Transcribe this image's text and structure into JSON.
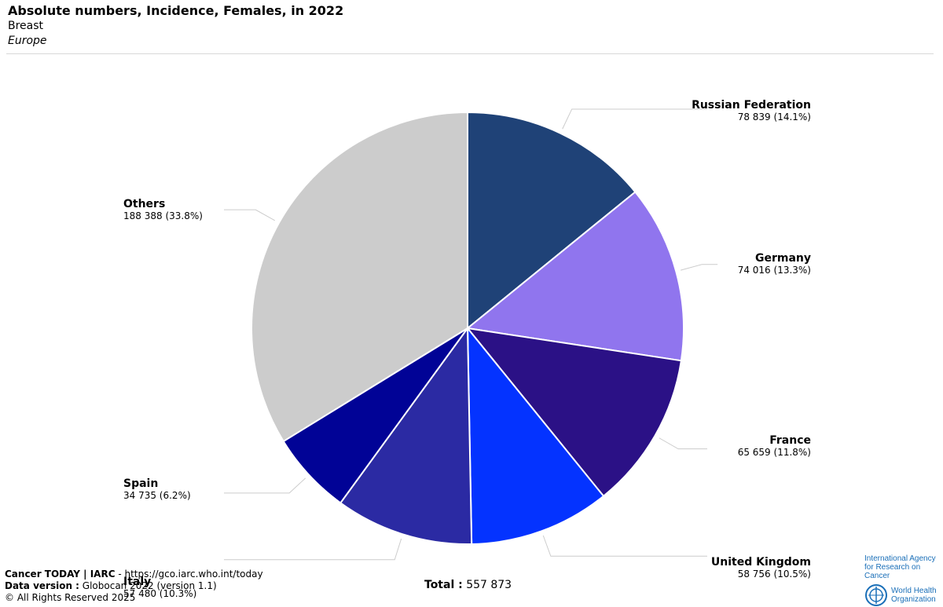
{
  "header": {
    "title": "Absolute numbers, Incidence, Females, in 2022",
    "subtitle": "Breast",
    "region": "Europe"
  },
  "chart_data": {
    "type": "pie",
    "title": "Absolute numbers, Incidence, Females, in 2022",
    "subtitle": "Breast",
    "slices": [
      {
        "label": "Russian Federation",
        "value": 78839,
        "value_text": "78 839 (14.1%)",
        "percent": 14.1,
        "color": "#1f4277"
      },
      {
        "label": "Germany",
        "value": 74016,
        "value_text": "74 016 (13.3%)",
        "percent": 13.3,
        "color": "#9075ee"
      },
      {
        "label": "France",
        "value": 65659,
        "value_text": "65 659 (11.8%)",
        "percent": 11.8,
        "color": "#2b1186"
      },
      {
        "label": "United Kingdom",
        "value": 58756,
        "value_text": "58 756 (10.5%)",
        "percent": 10.5,
        "color": "#0433ff"
      },
      {
        "label": "Italy",
        "value": 57480,
        "value_text": "57 480 (10.3%)",
        "percent": 10.3,
        "color": "#2b2aa3"
      },
      {
        "label": "Spain",
        "value": 34735,
        "value_text": "34 735 (6.2%)",
        "percent": 6.2,
        "color": "#010396"
      },
      {
        "label": "Others",
        "value": 188388,
        "value_text": "188 388 (33.8%)",
        "percent": 33.8,
        "color": "#cccccc"
      }
    ],
    "total_label": "Total :",
    "total_value": "557 873"
  },
  "footer": {
    "line1_bold": "Cancer TODAY | IARC",
    "line1_rest": " - https://gco.iarc.who.int/today",
    "line2_bold": "Data version :",
    "line2_rest": " Globocan 2022 (version 1.1)",
    "line3": "© All Rights Reserved 2025"
  },
  "logos": {
    "iarc_line1": "International Agency",
    "iarc_line2": "for Research on Cancer",
    "who_line1": "World Health",
    "who_line2": "Organization",
    "who_icon": "who-emblem-icon"
  }
}
